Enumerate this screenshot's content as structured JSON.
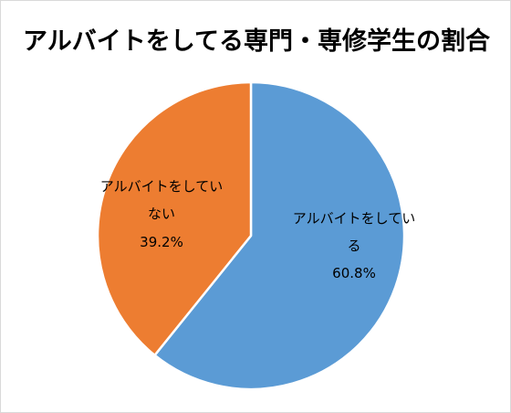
{
  "chart_data": {
    "type": "pie",
    "title": "アルバイトをしてる専門・専修学生の割合",
    "slices": [
      {
        "label_lines": [
          "アルバイトをしてい",
          "る"
        ],
        "value": 60.8,
        "value_label": "60.8%",
        "color": "#5B9BD5"
      },
      {
        "label_lines": [
          "アルバイトをしてい",
          "ない"
        ],
        "value": 39.2,
        "value_label": "39.2%",
        "color": "#ED7D31"
      }
    ],
    "start_angle_deg": 0,
    "direction": "clockwise",
    "legend": "none",
    "slice_border_color": "#ffffff"
  }
}
